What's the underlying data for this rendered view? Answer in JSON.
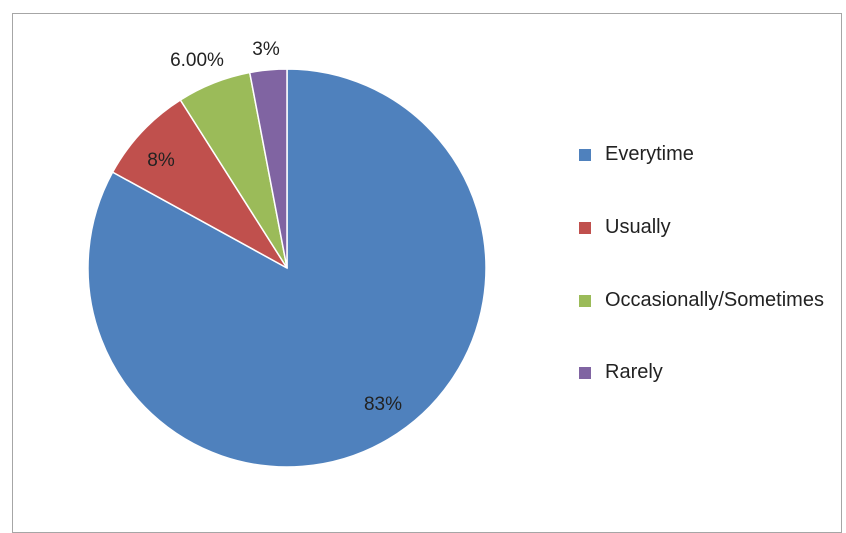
{
  "chart_data": {
    "type": "pie",
    "title": "",
    "slices": [
      {
        "label": "Everytime",
        "value": 83,
        "display": "83%",
        "color": "#4f81bd"
      },
      {
        "label": "Usually",
        "value": 8,
        "display": "8%",
        "color": "#c0504d"
      },
      {
        "label": "Occasionally/Sometimes",
        "value": 6,
        "display": "6.00%",
        "color": "#9bbb59"
      },
      {
        "label": "Rarely",
        "value": 3,
        "display": "3%",
        "color": "#8064a2"
      }
    ],
    "legend": {
      "position": "right",
      "items": [
        "Everytime",
        "Usually",
        "Occasionally/Sometimes",
        "Rarely"
      ]
    },
    "start_angle_deg": 0,
    "direction": "clockwise"
  }
}
